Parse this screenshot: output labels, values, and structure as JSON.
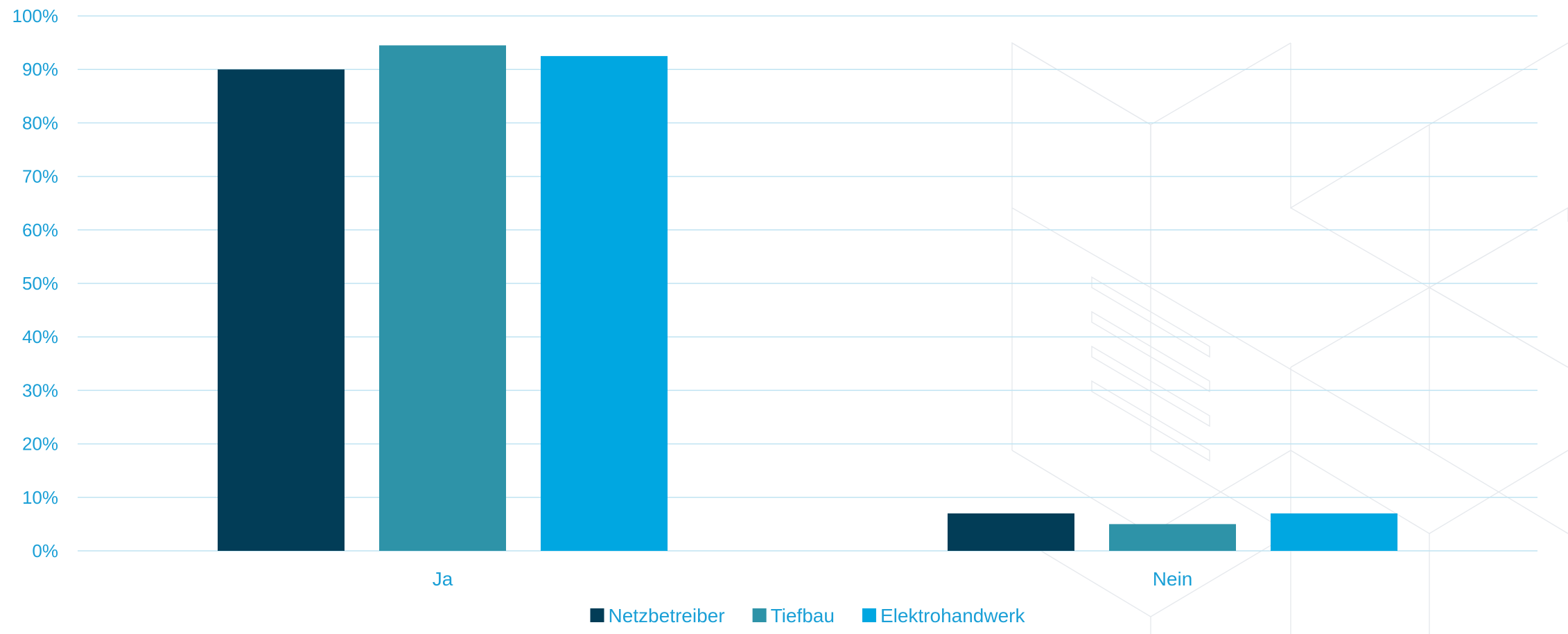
{
  "chart_data": {
    "type": "bar",
    "categories": [
      "Ja",
      "Nein"
    ],
    "series": [
      {
        "name": "Netzbetreiber",
        "values": [
          90,
          7
        ],
        "color": "#023d57"
      },
      {
        "name": "Tiefbau",
        "values": [
          94.5,
          5
        ],
        "color": "#2e93a8"
      },
      {
        "name": "Elektrohandwerk",
        "values": [
          92.5,
          7
        ],
        "color": "#00a7e1"
      }
    ],
    "ylim": [
      0,
      100
    ],
    "yticks": [
      "0%",
      "10%",
      "20%",
      "30%",
      "40%",
      "50%",
      "60%",
      "70%",
      "80%",
      "90%",
      "100%"
    ],
    "grid": true,
    "legend_position": "bottom"
  }
}
